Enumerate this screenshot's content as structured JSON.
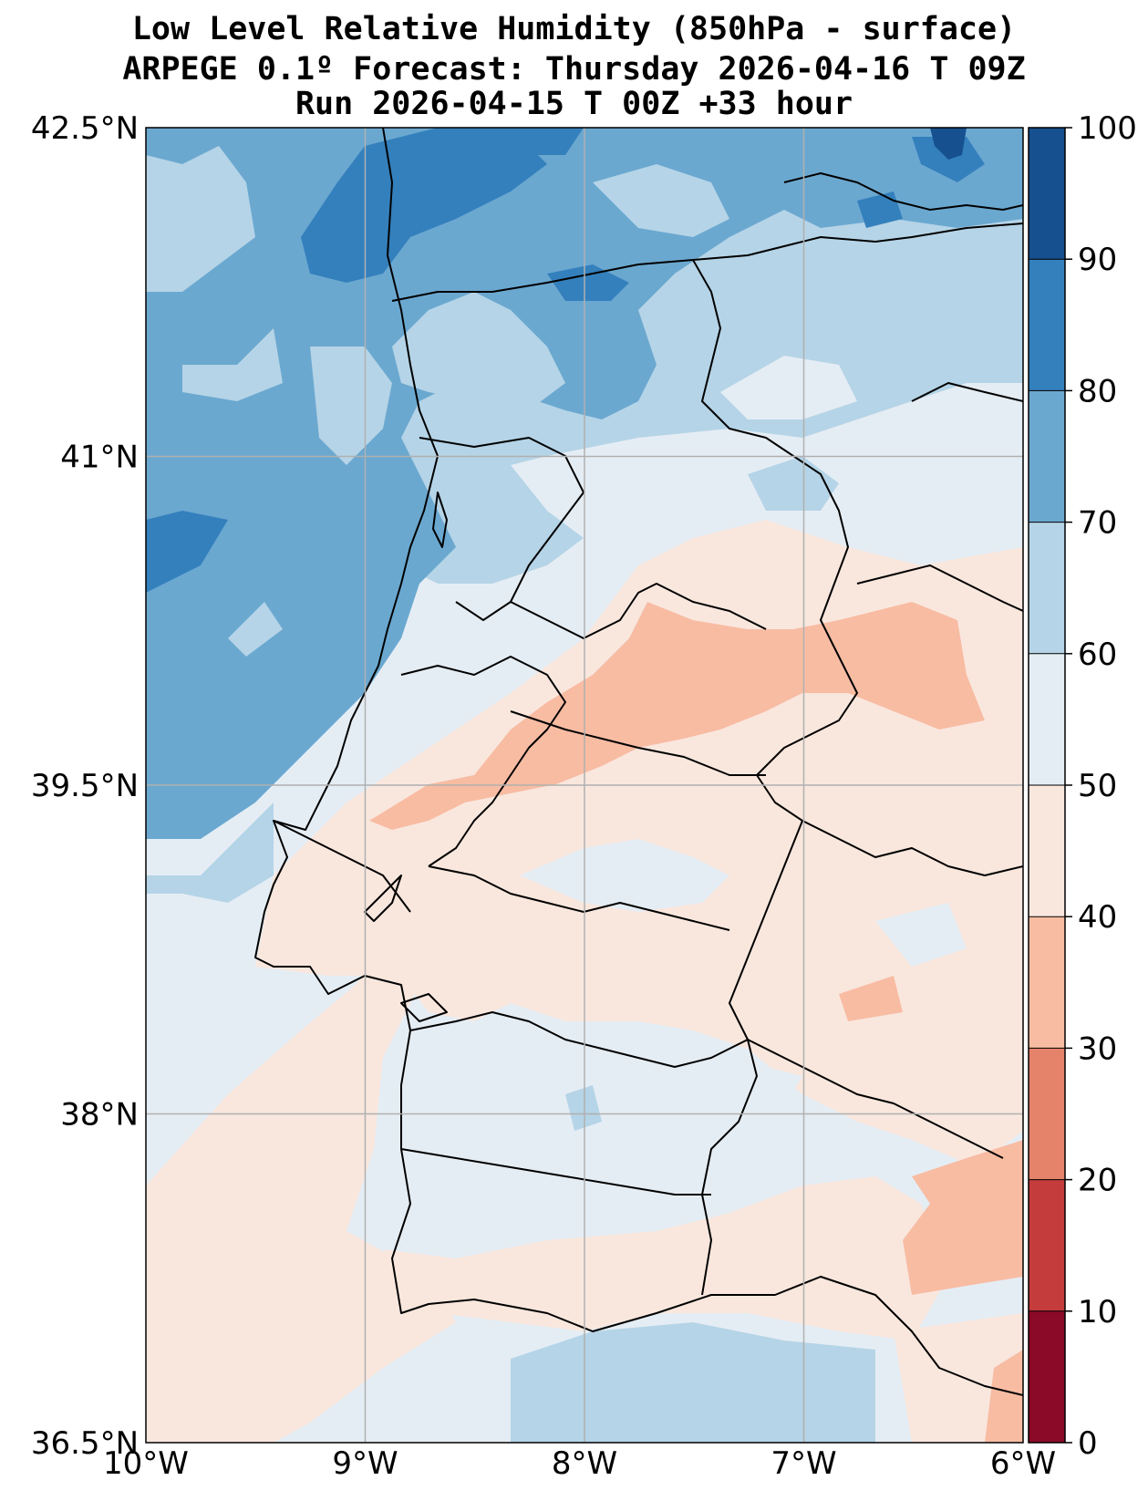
{
  "title": {
    "line1": "Low Level Relative Humidity (850hPa - surface)",
    "line2": "ARPEGE 0.1º Forecast: Thursday 2026-04-16 T 09Z",
    "line3": "Run 2026-04-15 T 00Z +33 hour"
  },
  "map": {
    "lat_labels": [
      "42.5°N",
      "41°N",
      "39.5°N",
      "38°N",
      "36.5°N"
    ],
    "lon_labels": [
      "10°W",
      "9°W",
      "8°W",
      "7°W",
      "6°W"
    ],
    "lat_range": [
      36.5,
      42.5
    ],
    "lon_range": [
      -10,
      -6
    ],
    "gridlines": true
  },
  "colorbar": {
    "ticks": [
      "0",
      "10",
      "20",
      "30",
      "40",
      "50",
      "60",
      "70",
      "80",
      "90",
      "100"
    ],
    "levels": [
      0,
      10,
      20,
      30,
      40,
      50,
      60,
      70,
      80,
      90,
      100
    ],
    "colors": [
      "#8b0a28",
      "#c43c3c",
      "#e5826a",
      "#f8bca3",
      "#f9e7de",
      "#e5edf4",
      "#b5d4e7",
      "#6ba8d0",
      "#3480bd",
      "#16508f"
    ]
  }
}
